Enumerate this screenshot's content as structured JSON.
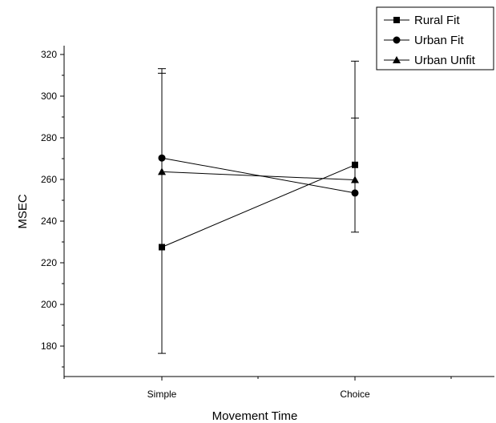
{
  "chart_data": {
    "type": "line",
    "title": "",
    "xlabel": "Movement Time",
    "ylabel": "MSEC",
    "categories": [
      "Simple",
      "Choice"
    ],
    "yticks": [
      180,
      200,
      220,
      240,
      260,
      280,
      300,
      320
    ],
    "ylim": [
      165,
      327
    ],
    "grid": false,
    "legend_position": "top-right",
    "series": [
      {
        "name": "Rural Fit",
        "marker": "square",
        "values": [
          227.5,
          267
        ],
        "error_low": [
          176.5,
          234.7
        ],
        "error_high": [
          311,
          289.5
        ]
      },
      {
        "name": "Urban Fit",
        "marker": "circle",
        "values": [
          270.3,
          253.5
        ],
        "error_low": [
          270.3,
          253.5
        ],
        "error_high": [
          313.2,
          316.8
        ]
      },
      {
        "name": "Urban Unfit",
        "marker": "triangle",
        "values": [
          263.7,
          259.8
        ],
        "error_low": [
          263.7,
          259.8
        ],
        "error_high": [
          263.7,
          259.8
        ]
      }
    ],
    "colors": {
      "line": "#000000",
      "background": "#ffffff"
    }
  }
}
